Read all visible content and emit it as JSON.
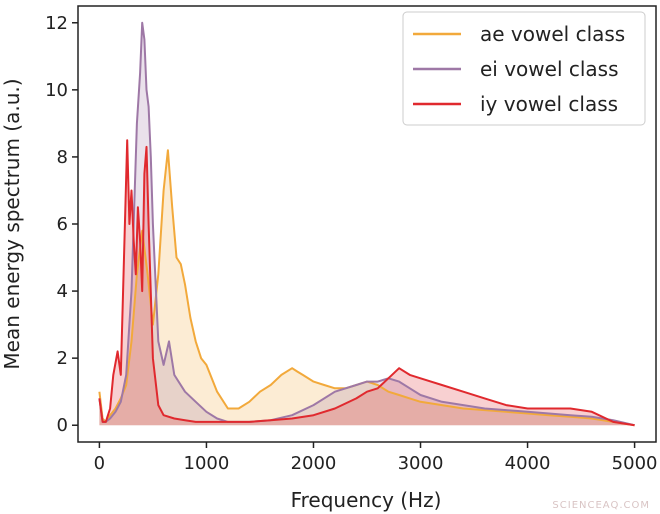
{
  "chart_data": {
    "type": "area",
    "xlabel": "Frequency (Hz)",
    "ylabel": "Mean energy spectrum (a.u.)",
    "xlim": [
      -200,
      5200
    ],
    "ylim": [
      -0.5,
      12.5
    ],
    "xticks": [
      0,
      1000,
      2000,
      3000,
      4000,
      5000
    ],
    "xtick_labels": [
      "0",
      "1000",
      "2000",
      "3000",
      "4000",
      "5000"
    ],
    "yticks": [
      0,
      2,
      4,
      6,
      8,
      10,
      12
    ],
    "ytick_labels": [
      "0",
      "2",
      "4",
      "6",
      "8",
      "10",
      "12"
    ],
    "grid": false,
    "legend_position": "top-right",
    "series": [
      {
        "name": "ae vowel class",
        "color": "#f2a93b",
        "x": [
          0,
          30,
          60,
          100,
          150,
          200,
          250,
          300,
          350,
          400,
          450,
          500,
          550,
          600,
          640,
          680,
          720,
          760,
          800,
          850,
          900,
          950,
          1000,
          1100,
          1200,
          1300,
          1400,
          1500,
          1600,
          1700,
          1800,
          1850,
          1900,
          2000,
          2100,
          2200,
          2300,
          2400,
          2500,
          2600,
          2700,
          2800,
          2900,
          3000,
          3200,
          3400,
          3600,
          3800,
          4000,
          4200,
          4400,
          4600,
          4800,
          5000
        ],
        "values": [
          1.0,
          0.2,
          0.1,
          0.3,
          0.5,
          0.8,
          1.2,
          2.5,
          4.5,
          5.8,
          4.5,
          3.0,
          4.5,
          7.0,
          8.2,
          6.5,
          5.0,
          4.8,
          4.2,
          3.2,
          2.5,
          2.0,
          1.8,
          1.0,
          0.5,
          0.5,
          0.7,
          1.0,
          1.2,
          1.5,
          1.7,
          1.6,
          1.5,
          1.3,
          1.2,
          1.1,
          1.1,
          1.2,
          1.3,
          1.2,
          1.0,
          0.9,
          0.8,
          0.7,
          0.6,
          0.5,
          0.45,
          0.4,
          0.35,
          0.3,
          0.25,
          0.2,
          0.1,
          0.0
        ]
      },
      {
        "name": "ei vowel class",
        "color": "#9e78a6",
        "x": [
          0,
          30,
          60,
          100,
          150,
          200,
          250,
          300,
          350,
          380,
          400,
          420,
          440,
          460,
          480,
          500,
          550,
          600,
          650,
          700,
          800,
          900,
          1000,
          1100,
          1200,
          1400,
          1600,
          1800,
          2000,
          2200,
          2400,
          2500,
          2600,
          2700,
          2800,
          2900,
          3000,
          3200,
          3400,
          3600,
          3800,
          4000,
          4200,
          4400,
          4600,
          4800,
          5000
        ],
        "values": [
          0.8,
          0.1,
          0.1,
          0.2,
          0.4,
          0.7,
          1.5,
          4.0,
          9.0,
          10.5,
          12.0,
          11.5,
          10.0,
          9.5,
          8.0,
          6.0,
          2.5,
          1.8,
          2.5,
          1.5,
          1.0,
          0.7,
          0.4,
          0.2,
          0.1,
          0.1,
          0.15,
          0.3,
          0.6,
          1.0,
          1.2,
          1.3,
          1.3,
          1.4,
          1.3,
          1.1,
          0.9,
          0.7,
          0.6,
          0.5,
          0.45,
          0.4,
          0.35,
          0.3,
          0.25,
          0.15,
          0.0
        ]
      },
      {
        "name": "iy vowel class",
        "color": "#e0292e",
        "x": [
          0,
          30,
          60,
          100,
          130,
          170,
          200,
          230,
          260,
          280,
          300,
          320,
          340,
          360,
          380,
          400,
          420,
          440,
          460,
          500,
          550,
          600,
          700,
          800,
          900,
          1000,
          1100,
          1200,
          1400,
          1600,
          1800,
          2000,
          2200,
          2400,
          2500,
          2600,
          2700,
          2800,
          2900,
          3000,
          3200,
          3400,
          3600,
          3800,
          4000,
          4200,
          4400,
          4600,
          4800,
          5000
        ],
        "values": [
          0.8,
          0.1,
          0.1,
          0.5,
          1.5,
          2.2,
          1.5,
          5.0,
          8.5,
          6.0,
          7.0,
          5.5,
          4.5,
          6.5,
          5.5,
          4.0,
          7.5,
          8.3,
          6.0,
          2.0,
          0.6,
          0.3,
          0.2,
          0.15,
          0.1,
          0.1,
          0.1,
          0.1,
          0.1,
          0.15,
          0.2,
          0.3,
          0.5,
          0.8,
          1.0,
          1.1,
          1.4,
          1.7,
          1.5,
          1.4,
          1.2,
          1.0,
          0.8,
          0.6,
          0.5,
          0.5,
          0.5,
          0.4,
          0.1,
          0.0
        ]
      }
    ]
  },
  "watermark": "SCIENCEAQ.COM"
}
